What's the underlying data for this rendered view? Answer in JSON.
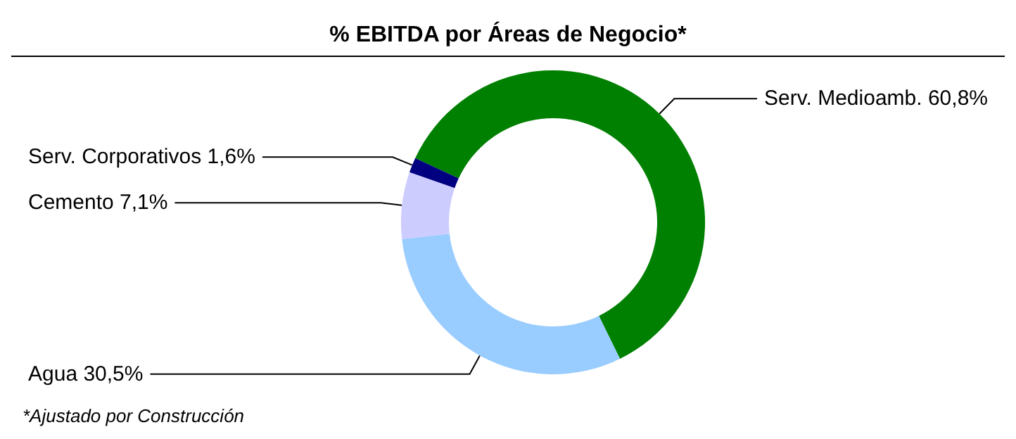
{
  "chart_data": {
    "type": "donut",
    "title": "% EBITDA por Áreas de Negocio*",
    "categories": [
      "Serv. Medioamb.",
      "Agua",
      "Cemento",
      "Serv. Corporativos"
    ],
    "values": [
      60.8,
      30.5,
      7.1,
      1.6
    ],
    "colors": [
      "#008000",
      "#99ccff",
      "#ccccff",
      "#000080"
    ],
    "value_labels": [
      "60,8%",
      "30,5%",
      "7,1%",
      "1,6%"
    ],
    "legend": false,
    "annotations": [
      "*Ajustado por Construcción"
    ]
  }
}
